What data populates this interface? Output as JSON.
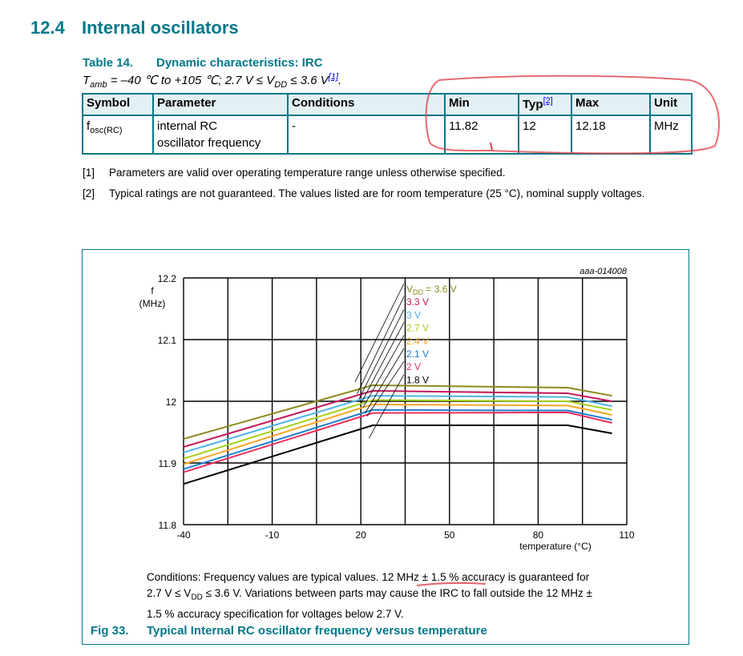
{
  "section": {
    "number": "12.4",
    "title": "Internal oscillators"
  },
  "table": {
    "number": "Table 14.",
    "title": "Dynamic characteristics: IRC",
    "conditions_prefix": "T",
    "conditions_sub": "amb",
    "conditions_mid": " = –40 ℃ to +105 ℃; 2.7 V ≤ V",
    "conditions_sub2": "DD",
    "conditions_tail": " ≤ 3.6 V",
    "conditions_ref": "[1]",
    "conditions_end": ".",
    "headers": {
      "symbol": "Symbol",
      "parameter": "Parameter",
      "conditions": "Conditions",
      "min": "Min",
      "typ": "Typ",
      "typ_ref": "[2]",
      "max": "Max",
      "unit": "Unit"
    },
    "rows": [
      {
        "symbol_main": "f",
        "symbol_sub": "osc(RC)",
        "parameter_line1": "internal RC",
        "parameter_line2": "oscillator frequency",
        "conditions": "-",
        "min": "11.82",
        "typ": "12",
        "max": "12.18",
        "unit": "MHz"
      }
    ]
  },
  "footnotes": [
    {
      "mark": "[1]",
      "text": "Parameters are valid over operating temperature range unless otherwise specified."
    },
    {
      "mark": "[2]",
      "text": "Typical ratings are not guaranteed. The values listed are for room temperature (25 °C), nominal supply voltages."
    }
  ],
  "figure": {
    "id_label": "aaa-014008",
    "number": "Fig 33.",
    "caption": "Typical Internal RC oscillator frequency versus temperature",
    "notes_line1": "Conditions: Frequency values are typical values. 12 MHz ± 1.5 % accuracy is guaranteed for",
    "notes_line2_a": "2.7 V ≤ V",
    "notes_line2_sub": "DD",
    "notes_line2_b": " ≤ 3.6 V. Variations between parts may cause the IRC to fall outside the 12 MHz ±",
    "notes_line3": "1.5 % accuracy specification for voltages below 2.7 V."
  },
  "colors": {
    "heading": "#00788a",
    "table_header_bg": "#e3f0f4",
    "annotation_red": "#e0454f"
  },
  "chart_data": {
    "type": "line",
    "title": "Typical Internal RC oscillator frequency versus temperature",
    "xlabel": "temperature (°C)",
    "ylabel": "f (MHz)",
    "xlim": [
      -40,
      110
    ],
    "ylim": [
      11.8,
      12.2
    ],
    "x_ticks": [
      -40,
      -10,
      20,
      50,
      80,
      110
    ],
    "y_ticks": [
      11.8,
      11.9,
      12.0,
      12.1,
      12.2
    ],
    "x_gridlines": [
      -40,
      -25,
      -10,
      5,
      20,
      35,
      50,
      65,
      80,
      95,
      110
    ],
    "y_gridlines": [
      11.8,
      11.9,
      12.0,
      12.1,
      12.2
    ],
    "grid": true,
    "legend_position": "inline labels near 25 °C",
    "x": [
      -40,
      24,
      90,
      105
    ],
    "series": [
      {
        "name": "VDD = 3.6 V",
        "label": "VDD = 3.6 V",
        "color": "#8a8a1e",
        "values": [
          11.939,
          12.026,
          12.022,
          12.009
        ]
      },
      {
        "name": "3.3 V",
        "label": "3.3 V",
        "color": "#c2185b",
        "values": [
          11.926,
          12.017,
          12.013,
          12.0
        ]
      },
      {
        "name": "3 V",
        "label": "3 V",
        "color": "#4fb3e8",
        "values": [
          11.917,
          12.009,
          12.007,
          11.992
        ]
      },
      {
        "name": "2.7 V",
        "label": "2.7 V",
        "color": "#a5cf1a",
        "values": [
          11.907,
          12.002,
          12.0,
          11.986
        ]
      },
      {
        "name": "2.4 V",
        "label": "2.4 V",
        "color": "#f5a623",
        "values": [
          11.898,
          11.995,
          11.993,
          11.978
        ]
      },
      {
        "name": "2.1 V",
        "label": "2.1 V",
        "color": "#1f7fcf",
        "values": [
          11.89,
          11.986,
          11.985,
          11.97
        ]
      },
      {
        "name": "2 V",
        "label": "2 V",
        "color": "#ef2d5e",
        "values": [
          11.885,
          11.981,
          11.982,
          11.965
        ]
      },
      {
        "name": "1.8 V",
        "label": "1.8 V",
        "color": "#000000",
        "values": [
          11.866,
          11.961,
          11.961,
          11.948
        ]
      }
    ]
  }
}
